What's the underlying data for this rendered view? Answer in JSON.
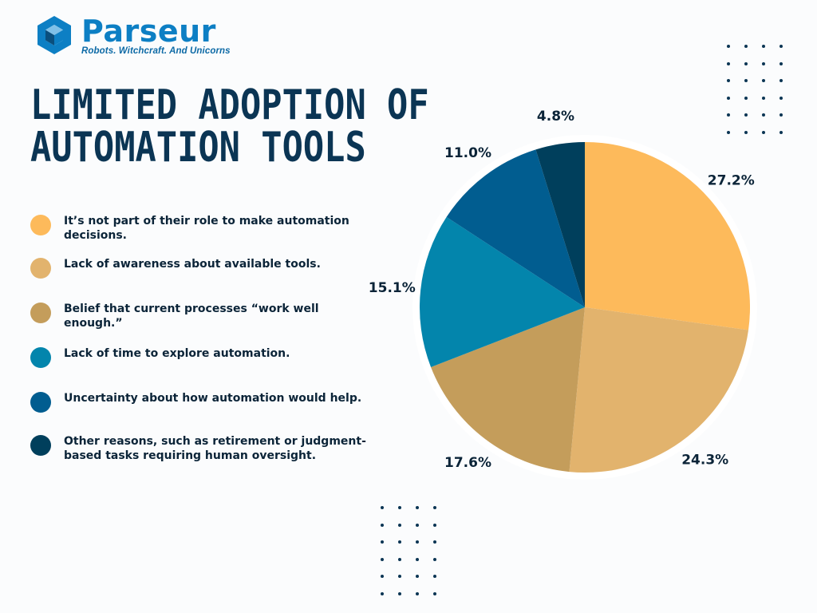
{
  "brand": {
    "name": "Parseur",
    "tagline": "Robots. Witchcraft. And Unicorns",
    "color": "#0d7fc4"
  },
  "title_lines": [
    "LIMITED ADOPTION OF",
    "AUTOMATION TOOLS"
  ],
  "chart_data": {
    "type": "pie",
    "title": "LIMITED ADOPTION OF AUTOMATION TOOLS",
    "legend_position": "left",
    "slices": [
      {
        "label": "It’s not part of their role to make automation decisions.",
        "value": 27.2,
        "display": "27.2%",
        "color": "#fdba5b"
      },
      {
        "label": "Lack of awareness about available tools.",
        "value": 24.3,
        "display": "24.3%",
        "color": "#e2b36d"
      },
      {
        "label": "Belief that current processes “work well enough.”",
        "value": 17.6,
        "display": "17.6%",
        "color": "#c49d5b"
      },
      {
        "label": "Lack of time to explore automation.",
        "value": 15.1,
        "display": "15.1%",
        "color": "#0385ac"
      },
      {
        "label": "Uncertainty about how automation would help.",
        "value": 11.0,
        "display": "11.0%",
        "color": "#015d90"
      },
      {
        "label": "Other reasons, such as retirement or judgment-based tasks requiring human oversight.",
        "value": 4.8,
        "display": "4.8%",
        "color": "#003f5c"
      }
    ]
  }
}
